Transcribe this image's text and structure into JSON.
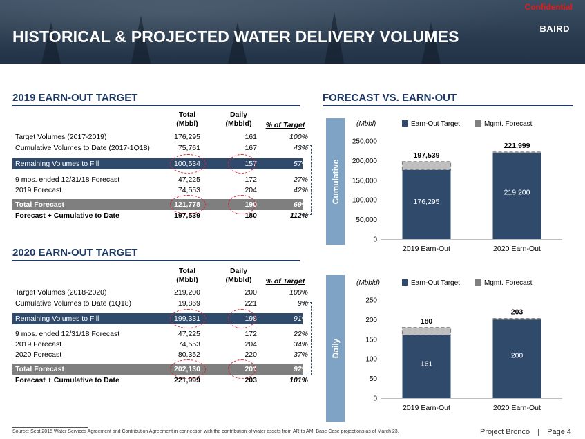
{
  "header": {
    "title": "HISTORICAL & PROJECTED WATER DELIVERY VOLUMES",
    "confidential": "Confidential",
    "logo": "BAIRD"
  },
  "section_2019": {
    "title": "2019 EARN-OUT TARGET",
    "col_headers": {
      "total_l1": "Total",
      "total_l2": "(Mbbl)",
      "daily_l1": "Daily",
      "daily_l2": "(Mbbld)",
      "pct": "% of Target"
    },
    "rows": [
      {
        "label": "Target Volumes (2017-2019)",
        "total": "176,295",
        "daily": "161",
        "pct": "100%"
      },
      {
        "label": "Cumulative Volumes to Date (2017-1Q18)",
        "total": "75,761",
        "daily": "167",
        "pct": "43%"
      },
      {
        "label": "Remaining Volumes to Fill",
        "total": "100,534",
        "daily": "157",
        "pct": "57%"
      },
      {
        "label": "9 mos. ended 12/31/18 Forecast",
        "total": "47,225",
        "daily": "172",
        "pct": "27%"
      },
      {
        "label": "2019 Forecast",
        "total": "74,553",
        "daily": "204",
        "pct": "42%"
      },
      {
        "label": "Total Forecast",
        "total": "121,778",
        "daily": "190",
        "pct": "69%"
      },
      {
        "label": "Forecast + Cumulative to Date",
        "total": "197,539",
        "daily": "180",
        "pct": "112%"
      }
    ]
  },
  "section_2020": {
    "title": "2020 EARN-OUT TARGET",
    "col_headers": {
      "total_l1": "Total",
      "total_l2": "(Mbbl)",
      "daily_l1": "Daily",
      "daily_l2": "(Mbbld)",
      "pct": "% of Target"
    },
    "rows": [
      {
        "label": "Target Volumes (2018-2020)",
        "total": "219,200",
        "daily": "200",
        "pct": "100%"
      },
      {
        "label": "Cumulative Volumes to Date (1Q18)",
        "total": "19,869",
        "daily": "221",
        "pct": "9%"
      },
      {
        "label": "Remaining Volumes to Fill",
        "total": "199,331",
        "daily": "198",
        "pct": "91%"
      },
      {
        "label": "9 mos. ended 12/31/18 Forecast",
        "total": "47,225",
        "daily": "172",
        "pct": "22%"
      },
      {
        "label": "2019 Forecast",
        "total": "74,553",
        "daily": "204",
        "pct": "34%"
      },
      {
        "label": "2020 Forecast",
        "total": "80,352",
        "daily": "220",
        "pct": "37%"
      },
      {
        "label": "Total Forecast",
        "total": "202,130",
        "daily": "201",
        "pct": "92%"
      },
      {
        "label": "Forecast + Cumulative to Date",
        "total": "221,999",
        "daily": "203",
        "pct": "101%"
      }
    ]
  },
  "forecast": {
    "title": "FORECAST VS. EARN-OUT",
    "tab_cumulative": "Cumulative",
    "tab_daily": "Daily"
  },
  "chart_data": [
    {
      "type": "bar",
      "ylabel": "(Mbbl)",
      "categories": [
        "2019 Earn-Out",
        "2020 Earn-Out"
      ],
      "series": [
        {
          "name": "Earn-Out Target",
          "values": [
            176295,
            219200
          ],
          "labels": [
            "176,295",
            "219,200"
          ]
        },
        {
          "name": "Mgmt. Forecast",
          "values": [
            197539,
            221999
          ],
          "labels": [
            "197,539",
            "221,999"
          ]
        }
      ],
      "ylim": [
        0,
        250000
      ],
      "ticks": [
        "0",
        "50,000",
        "100,000",
        "150,000",
        "200,000",
        "250,000"
      ],
      "tick_values": [
        0,
        50000,
        100000,
        150000,
        200000,
        250000
      ],
      "legend": "top",
      "colors": {
        "target": "#2f4a6a",
        "forecast": "#bfbfbf"
      }
    },
    {
      "type": "bar",
      "ylabel": "(Mbbld)",
      "categories": [
        "2019 Earn-Out",
        "2020 Earn-Out"
      ],
      "series": [
        {
          "name": "Earn-Out Target",
          "values": [
            161,
            200
          ],
          "labels": [
            "161",
            "200"
          ]
        },
        {
          "name": "Mgmt. Forecast",
          "values": [
            180,
            203
          ],
          "labels": [
            "180",
            "203"
          ]
        }
      ],
      "ylim": [
        0,
        250
      ],
      "ticks": [
        "0",
        "50",
        "100",
        "150",
        "200",
        "250"
      ],
      "tick_values": [
        0,
        50,
        100,
        150,
        200,
        250
      ],
      "legend": "top",
      "colors": {
        "target": "#2f4a6a",
        "forecast": "#bfbfbf"
      }
    }
  ],
  "footer": {
    "source": "Source:  Sept 2015 Water Services Agreement and Contribution Agreement in connection with the contribution of water assets from AR to AM.  Base Case projections as of March 23.",
    "project": "Project Bronco",
    "separator": "|",
    "page": "Page 4"
  }
}
